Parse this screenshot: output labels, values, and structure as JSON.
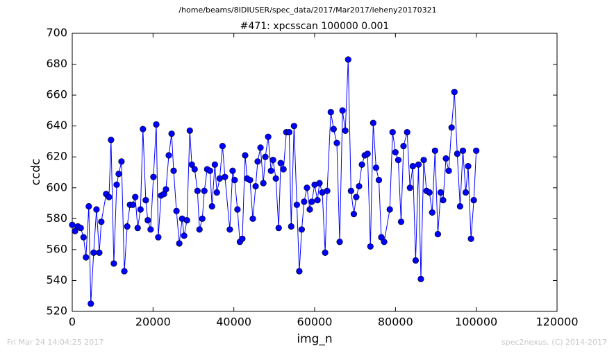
{
  "chart_data": {
    "type": "line",
    "suptitle": "/home/beams/8IDIUSER/spec_data/2017/Mar2017/leheny20170321",
    "title": "#471: xpcsscan 100000 0.001",
    "x_label": "img_n",
    "y_label": "ccdc",
    "footer_left": "Fri Mar 24 14:04:25 2017",
    "footer_right": "spec2nexus, (C) 2014-2017",
    "xlim": [
      0,
      120000
    ],
    "xticks": [
      0,
      20000,
      40000,
      60000,
      80000,
      100000,
      120000
    ],
    "ylim": [
      520,
      700
    ],
    "yticks": [
      520,
      540,
      560,
      580,
      600,
      620,
      640,
      660,
      680,
      700
    ],
    "color": "#0000ff",
    "marker": "circle",
    "x": [
      0,
      700,
      1400,
      2100,
      2800,
      3400,
      4100,
      4600,
      5300,
      6000,
      6700,
      7200,
      8400,
      9100,
      9600,
      10300,
      11000,
      11500,
      12200,
      12900,
      13600,
      14300,
      15000,
      15600,
      16200,
      16900,
      17500,
      18200,
      18700,
      19400,
      20100,
      20800,
      21300,
      22000,
      22700,
      23200,
      23900,
      24600,
      25100,
      25800,
      26500,
      27200,
      27700,
      28400,
      29100,
      29600,
      30300,
      31000,
      31500,
      32200,
      32700,
      33400,
      34100,
      34600,
      35300,
      35800,
      36500,
      37200,
      37800,
      39000,
      39700,
      40200,
      40900,
      41500,
      42100,
      42800,
      43300,
      44000,
      44700,
      45400,
      45900,
      46600,
      47300,
      47800,
      48500,
      49200,
      49700,
      50400,
      51100,
      51600,
      52300,
      53000,
      53700,
      54200,
      54900,
      55600,
      56200,
      56800,
      57400,
      58100,
      58800,
      59300,
      60000,
      60700,
      61200,
      61900,
      62600,
      63100,
      64000,
      64700,
      65500,
      66200,
      66900,
      67600,
      68300,
      69000,
      69700,
      70300,
      71000,
      71700,
      72400,
      73100,
      73800,
      74500,
      75200,
      75900,
      76500,
      77200,
      78600,
      79300,
      80000,
      80700,
      81400,
      82000,
      82900,
      83600,
      84300,
      85000,
      85700,
      86300,
      87000,
      87700,
      88400,
      89100,
      89800,
      90500,
      91200,
      91800,
      92500,
      93200,
      93900,
      94600,
      95300,
      96000,
      96700,
      97400,
      98000,
      98700,
      99400,
      100000
    ],
    "values": [
      576,
      572,
      575,
      574,
      568,
      555,
      588,
      525,
      558,
      586,
      558,
      578,
      596,
      594,
      631,
      551,
      602,
      609,
      617,
      546,
      575,
      589,
      589,
      594,
      574,
      586,
      638,
      592,
      579,
      573,
      607,
      641,
      568,
      595,
      596,
      599,
      621,
      635,
      611,
      585,
      564,
      580,
      569,
      579,
      637,
      615,
      612,
      598,
      573,
      580,
      598,
      612,
      611,
      588,
      615,
      597,
      606,
      627,
      607,
      573,
      611,
      605,
      586,
      565,
      567,
      621,
      606,
      605,
      580,
      601,
      617,
      626,
      603,
      620,
      633,
      611,
      618,
      606,
      574,
      616,
      612,
      636,
      636,
      575,
      640,
      589,
      546,
      573,
      591,
      600,
      586,
      591,
      602,
      592,
      603,
      597,
      558,
      598,
      649,
      638,
      629,
      565,
      650,
      637,
      683,
      598,
      583,
      594,
      601,
      615,
      621,
      622,
      562,
      642,
      613,
      605,
      568,
      565,
      586,
      636,
      623,
      618,
      578,
      627,
      636,
      600,
      614,
      553,
      615,
      541,
      618,
      598,
      597,
      584,
      624,
      570,
      597,
      592,
      619,
      611,
      639,
      662,
      622,
      588,
      624,
      597,
      614,
      567,
      592,
      624
    ]
  }
}
